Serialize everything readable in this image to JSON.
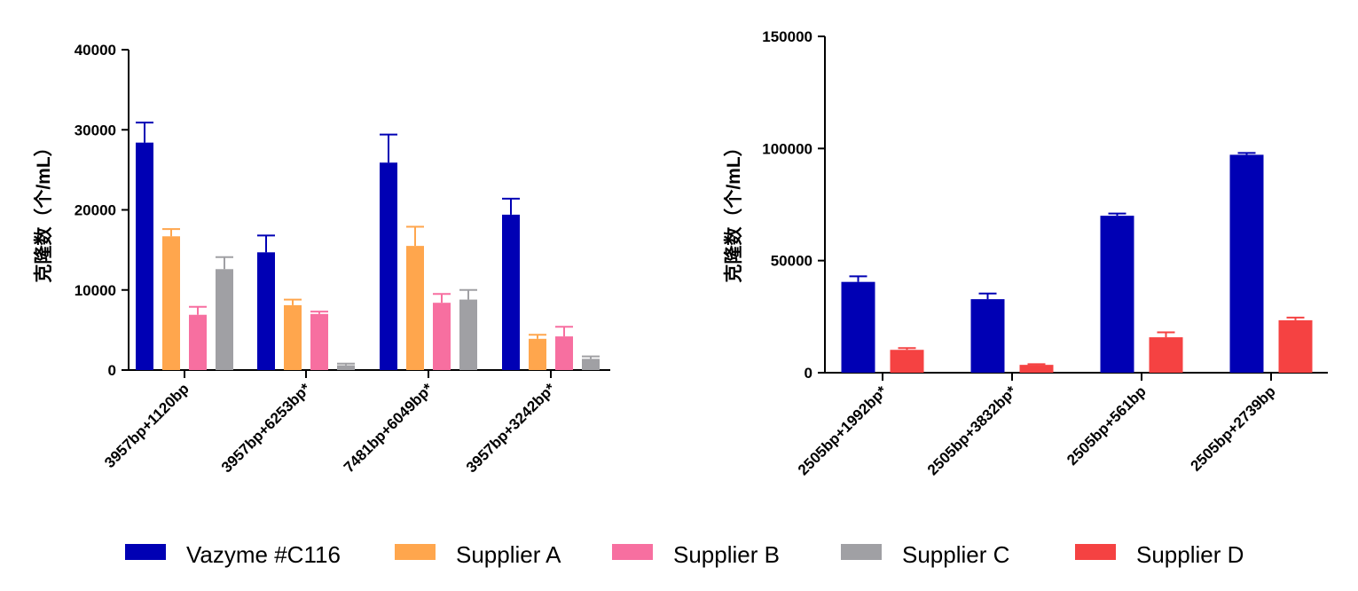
{
  "colors": {
    "Vazyme #C116": "#0000b4",
    "Supplier A": "#ffa64d",
    "Supplier B": "#f76fa0",
    "Supplier C": "#a0a0a4",
    "Supplier D": "#f54242"
  },
  "legend": [
    "Vazyme #C116",
    "Supplier A",
    "Supplier B",
    "Supplier C",
    "Supplier D"
  ],
  "chart_data": [
    {
      "type": "bar",
      "title": "",
      "xlabel": "",
      "ylabel": "克隆数（个/mL）",
      "ylim": [
        0,
        40000
      ],
      "yticks": [
        "0",
        "10000",
        "20000",
        "30000",
        "40000"
      ],
      "categories": [
        "3957bp+1120bp",
        "3957bp+6253bp*",
        "7481bp+6049bp*",
        "3957bp+3242bp*"
      ],
      "series": [
        {
          "name": "Vazyme #C116",
          "values": [
            28400,
            14700,
            25900,
            19400
          ],
          "errors": [
            2500,
            2100,
            3500,
            2000
          ]
        },
        {
          "name": "Supplier A",
          "values": [
            16700,
            8100,
            15500,
            3900
          ],
          "errors": [
            900,
            700,
            2400,
            500
          ]
        },
        {
          "name": "Supplier B",
          "values": [
            6900,
            7000,
            8400,
            4200
          ],
          "errors": [
            1000,
            300,
            1100,
            1200
          ]
        },
        {
          "name": "Supplier C",
          "values": [
            12600,
            600,
            8800,
            1400
          ],
          "errors": [
            1500,
            200,
            1200,
            300
          ]
        }
      ]
    },
    {
      "type": "bar",
      "title": "",
      "xlabel": "",
      "ylabel": "克隆数（个/mL）",
      "ylim": [
        0,
        150000
      ],
      "yticks": [
        "0",
        "50000",
        "100000",
        "150000"
      ],
      "categories": [
        "2505bp+1992bp*",
        "2505bp+3832bp*",
        "2505bp+561bp",
        "2505bp+2739bp"
      ],
      "series": [
        {
          "name": "Vazyme #C116",
          "values": [
            40500,
            32800,
            70000,
            97200
          ],
          "errors": [
            2500,
            2500,
            1000,
            800
          ]
        },
        {
          "name": "Supplier D",
          "values": [
            10200,
            3500,
            15800,
            23400
          ],
          "errors": [
            800,
            300,
            2200,
            1200
          ]
        }
      ]
    }
  ]
}
